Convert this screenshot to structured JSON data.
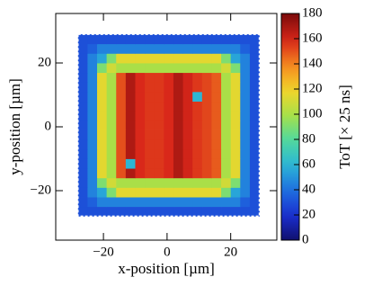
{
  "chart_data": {
    "type": "heatmap",
    "xlabel": "x-position [µm]",
    "ylabel": "y-position [µm]",
    "zlabel": "ToT [× 25 ns]",
    "xbins": [
      -28,
      -25,
      -22,
      -19,
      -16,
      -13,
      -10,
      -7,
      -4,
      -1,
      2,
      5,
      8,
      11,
      14,
      17,
      20,
      23,
      26,
      29
    ],
    "ybins": [
      -28,
      -25,
      -22,
      -19,
      -16,
      -13,
      -10,
      -7,
      -4,
      -1,
      2,
      5,
      8,
      11,
      14,
      17,
      20,
      23,
      26,
      29
    ],
    "z": [
      [
        30,
        30,
        30,
        30,
        30,
        30,
        30,
        30,
        30,
        30,
        30,
        30,
        30,
        30,
        30,
        30,
        30,
        30,
        30
      ],
      [
        30,
        35,
        45,
        45,
        45,
        45,
        45,
        45,
        45,
        45,
        45,
        45,
        45,
        45,
        45,
        45,
        45,
        35,
        30
      ],
      [
        30,
        45,
        55,
        90,
        115,
        115,
        115,
        115,
        115,
        115,
        115,
        115,
        115,
        115,
        115,
        90,
        55,
        45,
        30
      ],
      [
        30,
        45,
        90,
        110,
        100,
        100,
        100,
        100,
        100,
        100,
        100,
        100,
        100,
        100,
        100,
        110,
        90,
        45,
        30
      ],
      [
        30,
        45,
        115,
        100,
        150,
        168,
        158,
        155,
        155,
        158,
        168,
        160,
        155,
        152,
        148,
        100,
        115,
        45,
        30
      ],
      [
        30,
        45,
        115,
        100,
        150,
        60,
        158,
        155,
        155,
        158,
        168,
        160,
        155,
        152,
        148,
        100,
        115,
        45,
        30
      ],
      [
        30,
        45,
        115,
        100,
        150,
        168,
        158,
        155,
        155,
        158,
        168,
        160,
        155,
        152,
        148,
        100,
        115,
        45,
        30
      ],
      [
        30,
        45,
        115,
        100,
        150,
        168,
        158,
        155,
        155,
        158,
        168,
        160,
        155,
        152,
        148,
        100,
        115,
        45,
        30
      ],
      [
        30,
        45,
        115,
        100,
        150,
        168,
        158,
        155,
        155,
        158,
        168,
        160,
        155,
        152,
        148,
        100,
        115,
        45,
        30
      ],
      [
        30,
        45,
        115,
        100,
        150,
        168,
        158,
        155,
        155,
        158,
        168,
        160,
        155,
        152,
        148,
        100,
        115,
        45,
        30
      ],
      [
        30,
        45,
        115,
        100,
        150,
        168,
        158,
        155,
        155,
        158,
        168,
        160,
        155,
        152,
        148,
        100,
        115,
        45,
        30
      ],
      [
        30,
        45,
        115,
        100,
        150,
        168,
        158,
        155,
        155,
        158,
        168,
        160,
        155,
        152,
        148,
        100,
        115,
        45,
        30
      ],
      [
        30,
        45,
        115,
        100,
        150,
        168,
        158,
        155,
        155,
        158,
        168,
        160,
        60,
        152,
        148,
        100,
        115,
        45,
        30
      ],
      [
        30,
        45,
        115,
        100,
        150,
        168,
        158,
        155,
        155,
        158,
        168,
        160,
        155,
        152,
        148,
        100,
        115,
        45,
        30
      ],
      [
        30,
        45,
        115,
        100,
        150,
        168,
        158,
        155,
        155,
        158,
        168,
        160,
        155,
        152,
        148,
        100,
        115,
        45,
        30
      ],
      [
        30,
        45,
        90,
        110,
        100,
        100,
        100,
        100,
        100,
        100,
        100,
        100,
        100,
        100,
        100,
        110,
        90,
        45,
        30
      ],
      [
        30,
        45,
        55,
        90,
        115,
        115,
        115,
        115,
        115,
        115,
        115,
        115,
        115,
        115,
        115,
        90,
        55,
        45,
        30
      ],
      [
        30,
        35,
        45,
        45,
        45,
        45,
        45,
        45,
        45,
        45,
        45,
        45,
        45,
        45,
        45,
        45,
        45,
        35,
        30
      ],
      [
        30,
        30,
        30,
        30,
        30,
        30,
        30,
        30,
        30,
        30,
        30,
        30,
        30,
        30,
        30,
        30,
        30,
        30,
        30
      ]
    ],
    "xlim": [
      -35,
      34.5
    ],
    "ylim": [
      -35.5,
      35.5
    ],
    "zlim": [
      0,
      180
    ],
    "xticks": [
      {
        "value": -20,
        "label": "−20"
      },
      0,
      20
    ],
    "yticks": [
      {
        "value": -20,
        "label": "−20"
      },
      0,
      20
    ],
    "zticks": [
      0,
      20,
      40,
      60,
      80,
      100,
      120,
      140,
      160,
      180
    ]
  }
}
